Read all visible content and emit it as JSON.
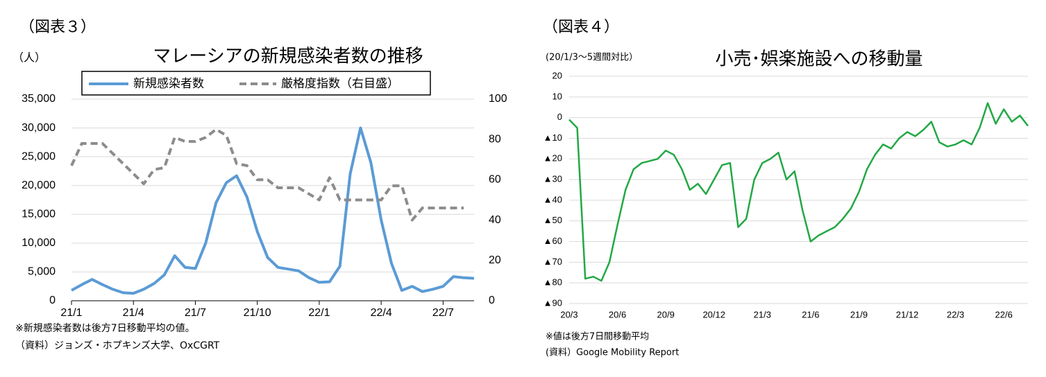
{
  "chart_data": [
    {
      "type": "line",
      "figure_label": "（図表３）",
      "title": "マレーシアの新規感染者数の推移",
      "y_label": "（人）",
      "categories": [
        "21/1",
        null,
        null,
        null,
        null,
        null,
        "21/4",
        null,
        null,
        null,
        null,
        null,
        "21/7",
        null,
        null,
        null,
        null,
        null,
        "21/10",
        null,
        null,
        null,
        null,
        null,
        "22/1",
        null,
        null,
        null,
        null,
        null,
        "22/4",
        null,
        null,
        null,
        null,
        null,
        "22/7",
        null,
        null,
        null
      ],
      "series": [
        {
          "name": "新規感染者数",
          "color": "#5b9bd5",
          "style": "solid",
          "axis": "y",
          "values": [
            1800,
            2800,
            3700,
            2800,
            2000,
            1400,
            1300,
            2000,
            3000,
            4500,
            7800,
            5800,
            5600,
            10000,
            17000,
            20500,
            21700,
            18000,
            12000,
            7500,
            5800,
            5500,
            5200,
            4000,
            3200,
            3300,
            6000,
            22000,
            30000,
            24000,
            14000,
            6500,
            1800,
            2500,
            1600,
            2000,
            2500,
            4200,
            4000,
            3900
          ]
        },
        {
          "name": "厳格度指数（右目盛）",
          "color": "#8c8c8c",
          "style": "dashed",
          "axis": "y2",
          "values": [
            67,
            78,
            78,
            78,
            73,
            68,
            63,
            58,
            65,
            66,
            81,
            79,
            79,
            81,
            85,
            82,
            68,
            67,
            60,
            60,
            56,
            56,
            56,
            53,
            50,
            61,
            50,
            50,
            50,
            50,
            50,
            57,
            57,
            40,
            46,
            46,
            46,
            46,
            46,
            null
          ]
        }
      ],
      "ylim": [
        0,
        35000
      ],
      "yticks": [
        0,
        {
          "value": 5000,
          "label": "5,000"
        },
        {
          "value": 10000,
          "label": "10,000"
        },
        {
          "value": 15000,
          "label": "15,000"
        },
        {
          "value": 20000,
          "label": "20,000"
        },
        {
          "value": 25000,
          "label": "25,000"
        },
        {
          "value": 30000,
          "label": "30,000"
        },
        {
          "value": 35000,
          "label": "35,000"
        }
      ],
      "y2lim": [
        0,
        100
      ],
      "y2ticks": [
        0,
        20,
        40,
        60,
        80,
        100
      ],
      "grid": true,
      "legend": "top",
      "notes": [
        "※新規感染者数は後方7日移動平均の値。",
        "（資料）ジョンズ・ホプキンズ大学、OxCGRT"
      ]
    },
    {
      "type": "line",
      "figure_label": "（図表４）",
      "title": "小売･娯楽施設への移動量",
      "y_label": "(20/1/3～5週間対比）",
      "categories": [
        "20/3",
        null,
        null,
        null,
        null,
        null,
        "20/6",
        null,
        null,
        null,
        null,
        null,
        "20/9",
        null,
        null,
        null,
        null,
        null,
        "20/12",
        null,
        null,
        null,
        null,
        null,
        "21/3",
        null,
        null,
        null,
        null,
        null,
        "21/6",
        null,
        null,
        null,
        null,
        null,
        "21/9",
        null,
        null,
        null,
        null,
        null,
        "21/12",
        null,
        null,
        null,
        null,
        null,
        "22/3",
        null,
        null,
        null,
        null,
        null,
        "22/6",
        null,
        null,
        null
      ],
      "series": [
        {
          "color": "#22a845",
          "style": "solid",
          "axis": "y",
          "values": [
            -1,
            -5,
            -78,
            -77,
            -79,
            -70,
            -52,
            -35,
            -25,
            -22,
            -21,
            -20,
            -16,
            -18,
            -25,
            -35,
            -32,
            -37,
            -30,
            -23,
            -22,
            -53,
            -49,
            -30,
            -22,
            -20,
            -17,
            -30,
            -26,
            -45,
            -60,
            -57,
            -55,
            -53,
            -49,
            -44,
            -36,
            -25,
            -18,
            -13,
            -15,
            -10,
            -7,
            -9,
            -6,
            -2,
            -12,
            -14,
            -13,
            -11,
            -13,
            -5,
            7,
            -3,
            4,
            -2,
            1,
            -4
          ]
        }
      ],
      "ylim": [
        -90,
        20
      ],
      "yticks": [
        {
          "value": -90,
          "label": "▲90"
        },
        {
          "value": -80,
          "label": "▲80"
        },
        {
          "value": -70,
          "label": "▲70"
        },
        {
          "value": -60,
          "label": "▲60"
        },
        {
          "value": -50,
          "label": "▲50"
        },
        {
          "value": -40,
          "label": "▲40"
        },
        {
          "value": -30,
          "label": "▲30"
        },
        {
          "value": -20,
          "label": "▲20"
        },
        {
          "value": -10,
          "label": "▲10"
        },
        0,
        10,
        20
      ],
      "grid": true,
      "notes": [
        "※値は後方7日間移動平均",
        "(資料）Google Mobility Report"
      ]
    }
  ]
}
